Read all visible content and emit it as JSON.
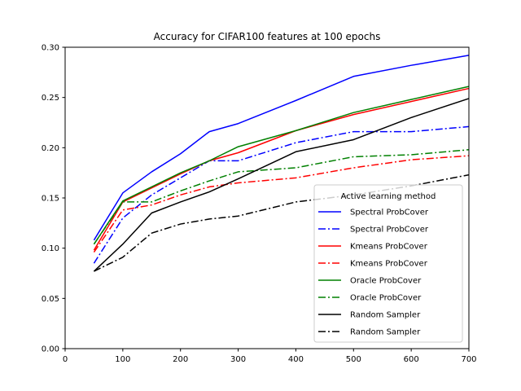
{
  "chart_data": {
    "type": "line",
    "title": "Accuracy for CIFAR100 features at 100 epochs",
    "xlabel": "",
    "ylabel": "",
    "xlim": [
      0,
      700
    ],
    "ylim": [
      0.0,
      0.3
    ],
    "x_ticks": [
      0,
      100,
      200,
      300,
      400,
      500,
      600,
      700
    ],
    "y_ticks": [
      0.0,
      0.05,
      0.1,
      0.15,
      0.2,
      0.25,
      0.3
    ],
    "x_tick_labels": [
      "0",
      "100",
      "200",
      "300",
      "400",
      "500",
      "600",
      "700"
    ],
    "y_tick_labels": [
      "0.00",
      "0.05",
      "0.10",
      "0.15",
      "0.20",
      "0.25",
      "0.30"
    ],
    "grid": false,
    "legend": {
      "title": "Active learning method",
      "placement": "lower-right"
    },
    "series": [
      {
        "name": "Spectral ProbCover",
        "color": "#0000ff",
        "style": "solid",
        "x": [
          50,
          100,
          150,
          200,
          250,
          300,
          400,
          500,
          600,
          700
        ],
        "y": [
          0.108,
          0.155,
          0.176,
          0.194,
          0.216,
          0.224,
          0.247,
          0.271,
          0.282,
          0.292
        ]
      },
      {
        "name": "Spectral ProbCover",
        "color": "#0000ff",
        "style": "dashdot",
        "x": [
          50,
          100,
          150,
          200,
          250,
          300,
          400,
          500,
          600,
          700
        ],
        "y": [
          0.085,
          0.13,
          0.153,
          0.17,
          0.187,
          0.187,
          0.205,
          0.216,
          0.216,
          0.221
        ]
      },
      {
        "name": "Kmeans ProbCover",
        "color": "#ff0000",
        "style": "solid",
        "x": [
          50,
          100,
          150,
          200,
          250,
          300,
          400,
          500,
          600,
          700
        ],
        "y": [
          0.098,
          0.146,
          0.16,
          0.174,
          0.187,
          0.195,
          0.217,
          0.233,
          0.246,
          0.259
        ]
      },
      {
        "name": "Kmeans ProbCover",
        "color": "#ff0000",
        "style": "dashdot",
        "x": [
          50,
          100,
          150,
          200,
          250,
          300,
          400,
          500,
          600,
          700
        ],
        "y": [
          0.096,
          0.138,
          0.143,
          0.153,
          0.161,
          0.165,
          0.17,
          0.18,
          0.188,
          0.192
        ]
      },
      {
        "name": "Oracle ProbCover",
        "color": "#008000",
        "style": "solid",
        "x": [
          50,
          100,
          150,
          200,
          250,
          300,
          400,
          500,
          600,
          700
        ],
        "y": [
          0.104,
          0.147,
          0.161,
          0.175,
          0.187,
          0.201,
          0.217,
          0.235,
          0.248,
          0.261
        ]
      },
      {
        "name": "Oracle ProbCover",
        "color": "#008000",
        "style": "dashdot",
        "x": [
          50,
          100,
          150,
          200,
          250,
          300,
          400,
          500,
          600,
          700
        ],
        "y": [
          0.104,
          0.146,
          0.146,
          0.157,
          0.167,
          0.176,
          0.18,
          0.191,
          0.193,
          0.198
        ]
      },
      {
        "name": "Random Sampler",
        "color": "#000000",
        "style": "solid",
        "x": [
          50,
          100,
          150,
          200,
          250,
          300,
          400,
          500,
          600,
          700
        ],
        "y": [
          0.077,
          0.104,
          0.135,
          0.146,
          0.156,
          0.169,
          0.196,
          0.208,
          0.23,
          0.249
        ]
      },
      {
        "name": "Random Sampler",
        "color": "#000000",
        "style": "dashdot",
        "x": [
          50,
          100,
          150,
          200,
          250,
          300,
          400,
          500,
          600,
          700
        ],
        "y": [
          0.077,
          0.091,
          0.115,
          0.124,
          0.129,
          0.132,
          0.146,
          0.153,
          0.162,
          0.173
        ]
      }
    ]
  }
}
